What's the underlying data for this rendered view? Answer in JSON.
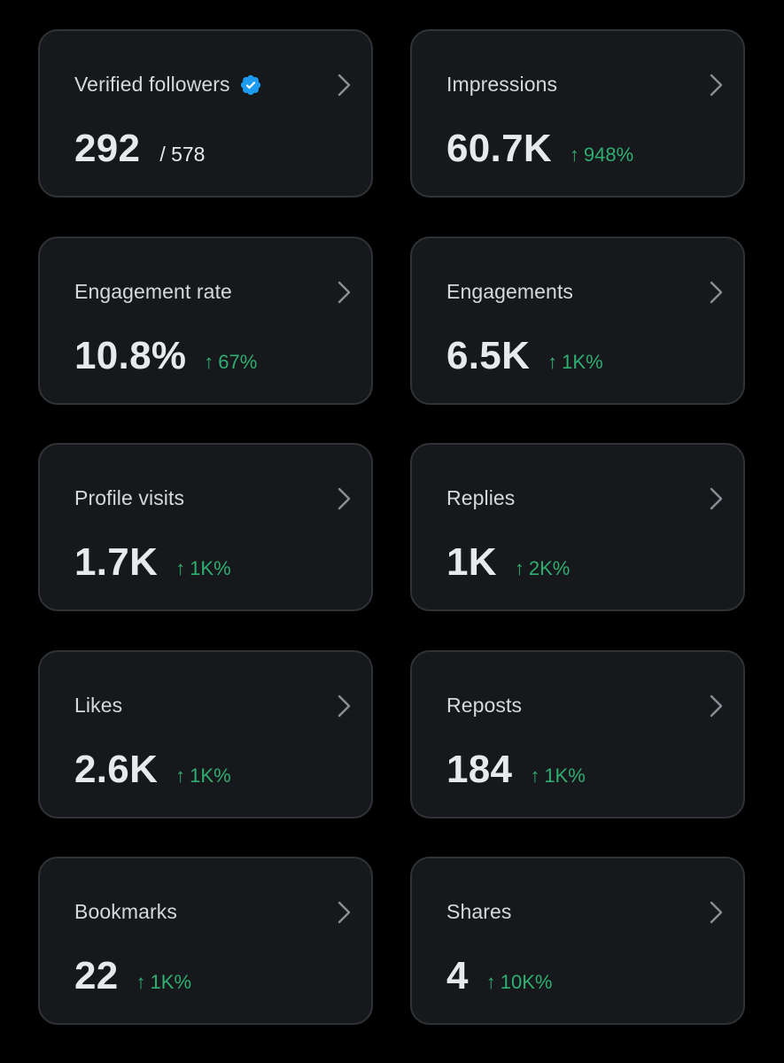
{
  "colors": {
    "background": "#000000",
    "card": "#16181c",
    "card_border": "#2f3336",
    "text_primary": "#e7e9ea",
    "text_secondary": "#d6d9db",
    "positive": "#2fae72",
    "verified": "#1d9bf0"
  },
  "cards": [
    {
      "label": "Verified followers",
      "icon": "verified-badge-icon",
      "value": "292",
      "secondary": "/ 578"
    },
    {
      "label": "Impressions",
      "value": "60.7K",
      "arrow": "↑",
      "change": "948%"
    },
    {
      "label": "Engagement rate",
      "value": "10.8%",
      "arrow": "↑",
      "change": "67%"
    },
    {
      "label": "Engagements",
      "value": "6.5K",
      "arrow": "↑",
      "change": "1K%"
    },
    {
      "label": "Profile visits",
      "value": "1.7K",
      "arrow": "↑",
      "change": "1K%"
    },
    {
      "label": "Replies",
      "value": "1K",
      "arrow": "↑",
      "change": "2K%"
    },
    {
      "label": "Likes",
      "value": "2.6K",
      "arrow": "↑",
      "change": "1K%"
    },
    {
      "label": "Reposts",
      "value": "184",
      "arrow": "↑",
      "change": "1K%"
    },
    {
      "label": "Bookmarks",
      "value": "22",
      "arrow": "↑",
      "change": "1K%"
    },
    {
      "label": "Shares",
      "value": "4",
      "arrow": "↑",
      "change": "10K%"
    }
  ]
}
